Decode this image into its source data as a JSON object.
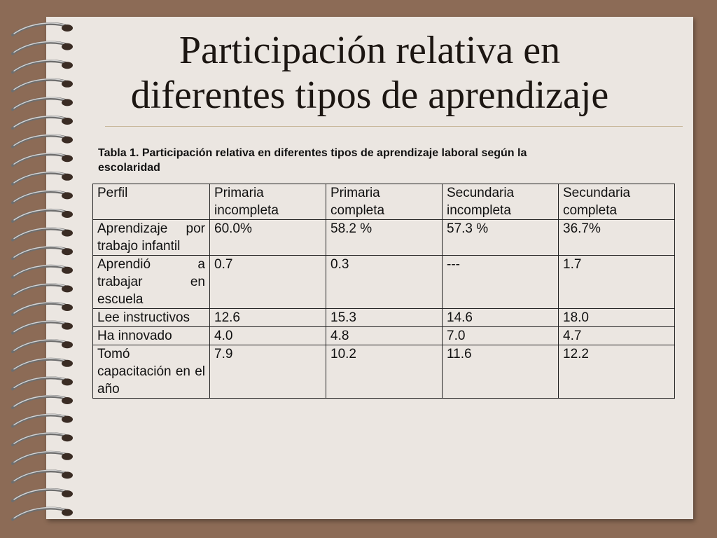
{
  "title": {
    "line1": "Participación relativa en",
    "line2": "diferentes tipos de aprendizaje"
  },
  "table": {
    "caption_line1": "Tabla 1.  Participación relativa en diferentes tipos de aprendizaje laboral según la",
    "caption_line2": "escolaridad",
    "headers": [
      "Perfil",
      "Primaria incompleta",
      "Primaria completa",
      "Secundaria incompleta",
      "Secundaria completa"
    ],
    "rows": [
      [
        "Aprendizaje por trabajo infantil",
        "60.0%",
        "58.2 %",
        "57.3 %",
        "36.7%"
      ],
      [
        "Aprendió a trabajar en escuela",
        "0.7",
        "0.3",
        "---",
        "1.7"
      ],
      [
        "Lee instructivos",
        "12.6",
        "15.3",
        "14.6",
        "18.0"
      ],
      [
        "Ha innovado",
        "4.0",
        "4.8",
        "7.0",
        "4.7"
      ],
      [
        "Tomó capacitación en el año",
        "7.9",
        "10.2",
        "11.6",
        "12.2"
      ]
    ]
  },
  "colors": {
    "background": "#8c6b56",
    "paper": "#ebe6e1",
    "text": "#1c1612"
  },
  "icons": [
    "spiral-binding-rings"
  ]
}
